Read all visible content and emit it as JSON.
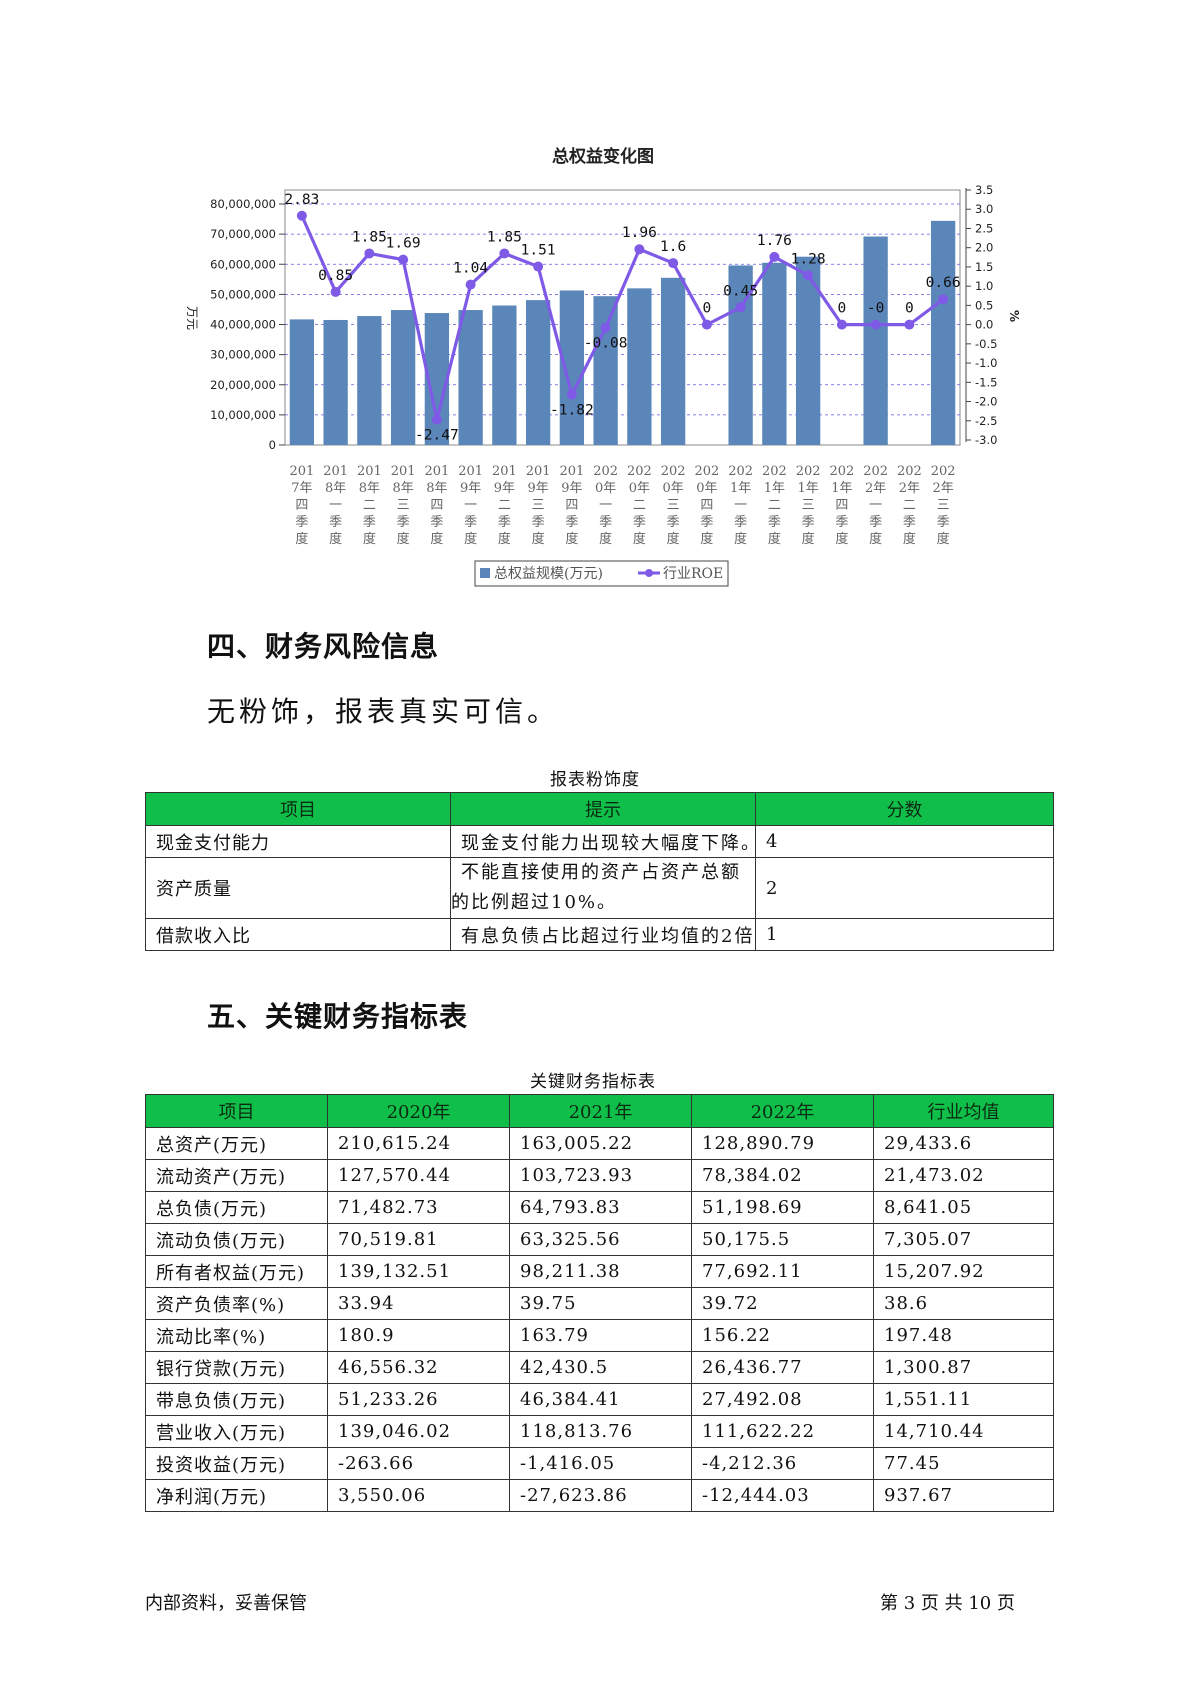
{
  "chart": {
    "title": "总权益变化图",
    "y_left_label": "万元",
    "y_right_label": "%",
    "legend": {
      "bar": "总权益规模(万元)",
      "line": "行业ROE"
    },
    "colors": {
      "bar": "#5b86b9",
      "line": "#7e5ae6",
      "grid": "#5a5ae0"
    }
  },
  "chart_data": {
    "type": "bar",
    "title": "总权益变化图",
    "categories": [
      [
        "201",
        "7年",
        "四",
        "季",
        "度"
      ],
      [
        "201",
        "8年",
        "一",
        "季",
        "度"
      ],
      [
        "201",
        "8年",
        "二",
        "季",
        "度"
      ],
      [
        "201",
        "8年",
        "三",
        "季",
        "度"
      ],
      [
        "201",
        "8年",
        "四",
        "季",
        "度"
      ],
      [
        "201",
        "9年",
        "一",
        "季",
        "度"
      ],
      [
        "201",
        "9年",
        "二",
        "季",
        "度"
      ],
      [
        "201",
        "9年",
        "三",
        "季",
        "度"
      ],
      [
        "201",
        "9年",
        "四",
        "季",
        "度"
      ],
      [
        "202",
        "0年",
        "一",
        "季",
        "度"
      ],
      [
        "202",
        "0年",
        "二",
        "季",
        "度"
      ],
      [
        "202",
        "0年",
        "三",
        "季",
        "度"
      ],
      [
        "202",
        "0年",
        "四",
        "季",
        "度"
      ],
      [
        "202",
        "1年",
        "一",
        "季",
        "度"
      ],
      [
        "202",
        "1年",
        "二",
        "季",
        "度"
      ],
      [
        "202",
        "1年",
        "三",
        "季",
        "度"
      ],
      [
        "202",
        "1年",
        "四",
        "季",
        "度"
      ],
      [
        "202",
        "2年",
        "一",
        "季",
        "度"
      ],
      [
        "202",
        "2年",
        "二",
        "季",
        "度"
      ],
      [
        "202",
        "2年",
        "三",
        "季",
        "度"
      ]
    ],
    "series": [
      {
        "name": "总权益规模(万元)",
        "type": "bar",
        "axis": "left",
        "values": [
          41700000,
          41500000,
          42800000,
          44800000,
          43800000,
          44800000,
          46300000,
          48100000,
          51300000,
          49400000,
          52000000,
          55500000,
          null,
          59600000,
          60500000,
          62500000,
          null,
          69200000,
          null,
          74400000
        ]
      },
      {
        "name": "行业ROE",
        "type": "line",
        "axis": "right",
        "values": [
          2.83,
          0.85,
          1.85,
          1.69,
          -2.47,
          1.04,
          1.85,
          1.51,
          -1.82,
          -0.08,
          1.96,
          1.6,
          0,
          0.45,
          1.76,
          1.28,
          0,
          0,
          0,
          0.66
        ],
        "labels": [
          "2.83",
          "0.85",
          "1.85",
          "1.69",
          "-2.47",
          "1.04",
          "1.85",
          "1.51",
          "-1.82",
          "-0.08",
          "1.96",
          "1.6",
          "0",
          "0.45",
          "1.76",
          "1.28",
          "0",
          "-0",
          "0",
          "0.66"
        ]
      }
    ],
    "y_left": {
      "ylim": [
        0,
        80000000
      ],
      "ticks": [
        "0",
        "10,000,000",
        "20,000,000",
        "30,000,000",
        "40,000,000",
        "50,000,000",
        "60,000,000",
        "70,000,000",
        "80,000,000"
      ]
    },
    "y_right": {
      "ylim": [
        -3.0,
        3.5
      ],
      "ticks": [
        "-3.0",
        "-2.5",
        "-2.0",
        "-1.5",
        "-1.0",
        "-0.5",
        "0.0",
        "0.5",
        "1.0",
        "1.5",
        "2.0",
        "2.5",
        "3.0",
        "3.5"
      ]
    },
    "grid": true,
    "legend_position": "bottom"
  },
  "section4": {
    "heading": "四、财务风险信息",
    "text": "无粉饰，报表真实可信。"
  },
  "risk_table": {
    "caption": "报表粉饰度",
    "headers": [
      "项目",
      "提示",
      "分数"
    ],
    "rows": [
      {
        "item": "现金支付能力",
        "hint": [
          "现金支付能力出现较大幅度下降。"
        ],
        "score": "4"
      },
      {
        "item": "资产质量",
        "hint": [
          "不能直接使用的资产占资产总额",
          "的比例超过10%。"
        ],
        "score": "2"
      },
      {
        "item": "借款收入比",
        "hint": [
          "有息负债占比超过行业均值的2倍"
        ],
        "score": "1"
      }
    ]
  },
  "section5": {
    "heading": "五、关键财务指标表"
  },
  "kpi_table": {
    "caption": "关键财务指标表",
    "headers": [
      "项目",
      "2020年",
      "2021年",
      "2022年",
      "行业均值"
    ],
    "rows": [
      [
        "总资产(万元)",
        "210,615.24",
        "163,005.22",
        "128,890.79",
        "29,433.6"
      ],
      [
        "流动资产(万元)",
        "127,570.44",
        "103,723.93",
        "78,384.02",
        "21,473.02"
      ],
      [
        "总负债(万元)",
        "71,482.73",
        "64,793.83",
        "51,198.69",
        "8,641.05"
      ],
      [
        "流动负债(万元)",
        "70,519.81",
        "63,325.56",
        "50,175.5",
        "7,305.07"
      ],
      [
        "所有者权益(万元)",
        "139,132.51",
        "98,211.38",
        "77,692.11",
        "15,207.92"
      ],
      [
        "资产负债率(%)",
        "33.94",
        "39.75",
        "39.72",
        "38.6"
      ],
      [
        "流动比率(%)",
        "180.9",
        "163.79",
        "156.22",
        "197.48"
      ],
      [
        "银行贷款(万元)",
        "46,556.32",
        "42,430.5",
        "26,436.77",
        "1,300.87"
      ],
      [
        "带息负债(万元)",
        "51,233.26",
        "46,384.41",
        "27,492.08",
        "1,551.11"
      ],
      [
        "营业收入(万元)",
        "139,046.02",
        "118,813.76",
        "111,622.22",
        "14,710.44"
      ],
      [
        "投资收益(万元)",
        "-263.66",
        "-1,416.05",
        "-4,212.36",
        "77.45"
      ],
      [
        "净利润(万元)",
        "3,550.06",
        "-27,623.86",
        "-12,444.03",
        "937.67"
      ]
    ]
  },
  "footer": {
    "left": "内部资料，妥善保管",
    "right": "第 3 页  共 10 页"
  }
}
